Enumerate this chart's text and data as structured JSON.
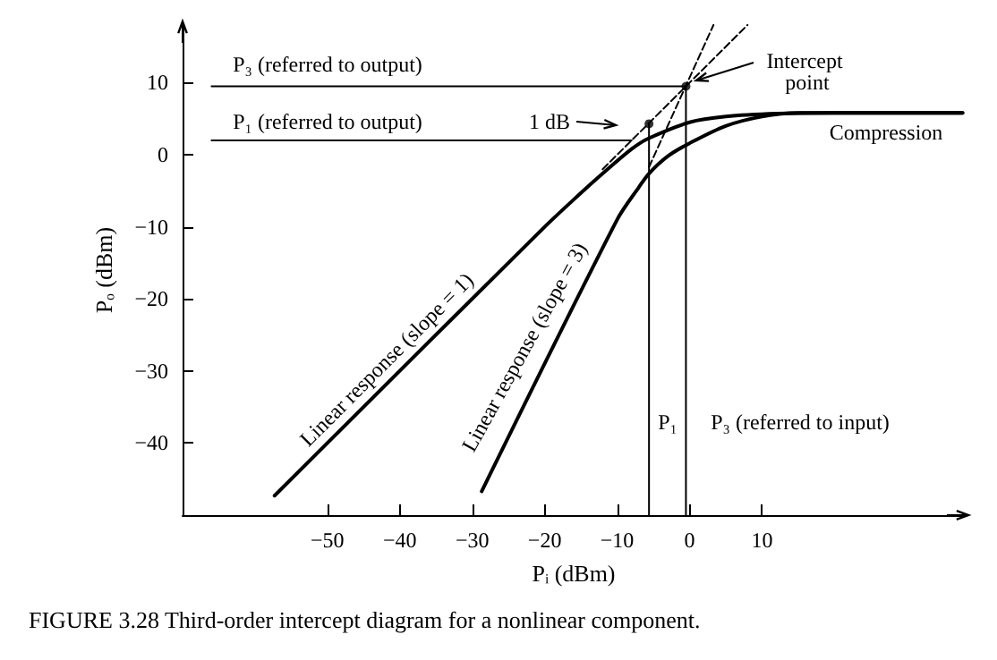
{
  "chart_data": {
    "type": "line",
    "xlabel": "Pᵢ (dBm)",
    "ylabel": "Pₒ (dBm)",
    "xlim": [
      -70,
      38
    ],
    "ylim": [
      -50,
      18
    ],
    "xticks": [
      -50,
      -40,
      -30,
      -20,
      -10,
      0,
      10
    ],
    "yticks": [
      -40,
      -30,
      -20,
      -10,
      0,
      10
    ],
    "grid": false,
    "series": [
      {
        "color": "#000000",
        "x": [
          -57.3,
          -20,
          -15,
          -12,
          -8,
          -5.6,
          0,
          5,
          12,
          20,
          37.7
        ],
        "values": [
          -47.3,
          -10,
          -5.3,
          -2.6,
          0.8,
          2.3,
          4.5,
          5.3,
          5.7,
          5.8,
          5.8
        ]
      },
      {
        "color": "#000000",
        "x": [
          -28.7,
          -10,
          -7,
          -5.6,
          -3,
          0,
          5,
          10,
          15,
          37.7
        ],
        "values": [
          -46.7,
          -9,
          -4.5,
          -2.6,
          -0.2,
          1.6,
          4,
          5.3,
          5.8,
          5.8
        ]
      },
      {
        "color": "#000000",
        "line_style": "dashed",
        "x": [
          -12,
          8
        ],
        "values": [
          -2,
          18
        ]
      },
      {
        "color": "#000000",
        "line_style": "dashed",
        "x": [
          -5.6,
          3.3
        ],
        "values": [
          -1.7,
          18
        ]
      },
      {
        "color": "#000000",
        "x": [
          -66,
          -0.5
        ],
        "values": [
          9.5,
          9.5
        ]
      },
      {
        "color": "#000000",
        "x": [
          -66,
          -8
        ],
        "values": [
          2,
          2
        ]
      },
      {
        "color": "#000000",
        "x": [
          -5.6,
          -5.6
        ],
        "values": [
          -50,
          4.3
        ]
      },
      {
        "color": "#000000",
        "x": [
          -0.5,
          -0.5
        ],
        "values": [
          -50,
          9.5
        ]
      },
      {
        "type": "scatter",
        "marker": "circle",
        "color": "#000000",
        "x": [
          -5.6,
          -0.5
        ],
        "values": [
          4.3,
          9.5
        ]
      }
    ],
    "annotations": [
      "P₃ (referred to output)",
      "P₁ (referred to output)",
      "1 dB",
      "Intercept point",
      "Compression",
      "Linear response (slope = 1)",
      "Linear response (slope = 3)",
      "P₁",
      "P₃ (referred to input)",
      "FIGURE 3.28 Third-order intercept diagram for a nonlinear component."
    ]
  }
}
